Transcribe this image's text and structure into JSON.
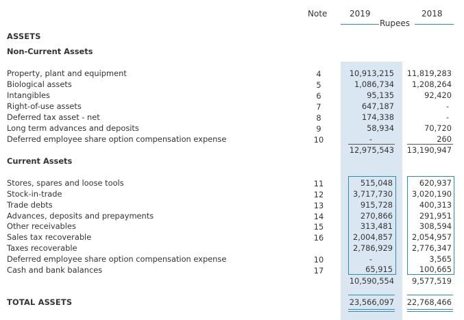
{
  "header": {
    "note_label": "Note",
    "year_current": "2019",
    "year_prior": "2018",
    "unit": "Rupees"
  },
  "assets_title": "ASSETS",
  "non_current": {
    "title": "Non-Current Assets",
    "rows": [
      {
        "label": "Property, plant and equipment",
        "note": "4",
        "y2019": "10,913,215",
        "y2018": "11,819,283"
      },
      {
        "label": "Biological assets",
        "note": "5",
        "y2019": "1,086,734",
        "y2018": "1,208,264"
      },
      {
        "label": "Intangibles",
        "note": "6",
        "y2019": "95,135",
        "y2018": "92,420"
      },
      {
        "label": "Right-of-use assets",
        "note": "7",
        "y2019": "647,187",
        "y2018": "-"
      },
      {
        "label": "Deferred tax asset - net",
        "note": "8",
        "y2019": "174,338",
        "y2018": "-"
      },
      {
        "label": "Long term advances and deposits",
        "note": "9",
        "y2019": "58,934",
        "y2018": "70,720"
      },
      {
        "label": "Deferred employee share option compensation expense",
        "note": "10",
        "y2019": "-",
        "y2018": "260"
      }
    ],
    "total_2019": "12,975,543",
    "total_2018": "13,190,947"
  },
  "current": {
    "title": "Current Assets",
    "rows": [
      {
        "label": "Stores, spares and loose tools",
        "note": "11",
        "y2019": "515,048",
        "y2018": "620,937"
      },
      {
        "label": "Stock-in-trade",
        "note": "12",
        "y2019": "3,717,730",
        "y2018": "3,020,190"
      },
      {
        "label": "Trade debts",
        "note": "13",
        "y2019": "915,728",
        "y2018": "400,313"
      },
      {
        "label": "Advances, deposits and prepayments",
        "note": "14",
        "y2019": "270,866",
        "y2018": "291,951"
      },
      {
        "label": "Other receivables",
        "note": "15",
        "y2019": "313,481",
        "y2018": "308,594"
      },
      {
        "label": "Sales tax recoverable",
        "note": "16",
        "y2019": "2,004,857",
        "y2018": "2,054,957"
      },
      {
        "label": "Taxes recoverable",
        "note": "",
        "y2019": "2,786,929",
        "y2018": "2,776,347"
      },
      {
        "label": "Deferred employee share option compensation expense",
        "note": "10",
        "y2019": "-",
        "y2018": "3,565"
      },
      {
        "label": "Cash and bank balances",
        "note": "17",
        "y2019": "65,915",
        "y2018": "100,665"
      }
    ],
    "total_2019": "10,590,554",
    "total_2018": "9,577,519"
  },
  "total_assets": {
    "label": "TOTAL ASSETS",
    "y2019": "23,566,097",
    "y2018": "22,768,466"
  }
}
